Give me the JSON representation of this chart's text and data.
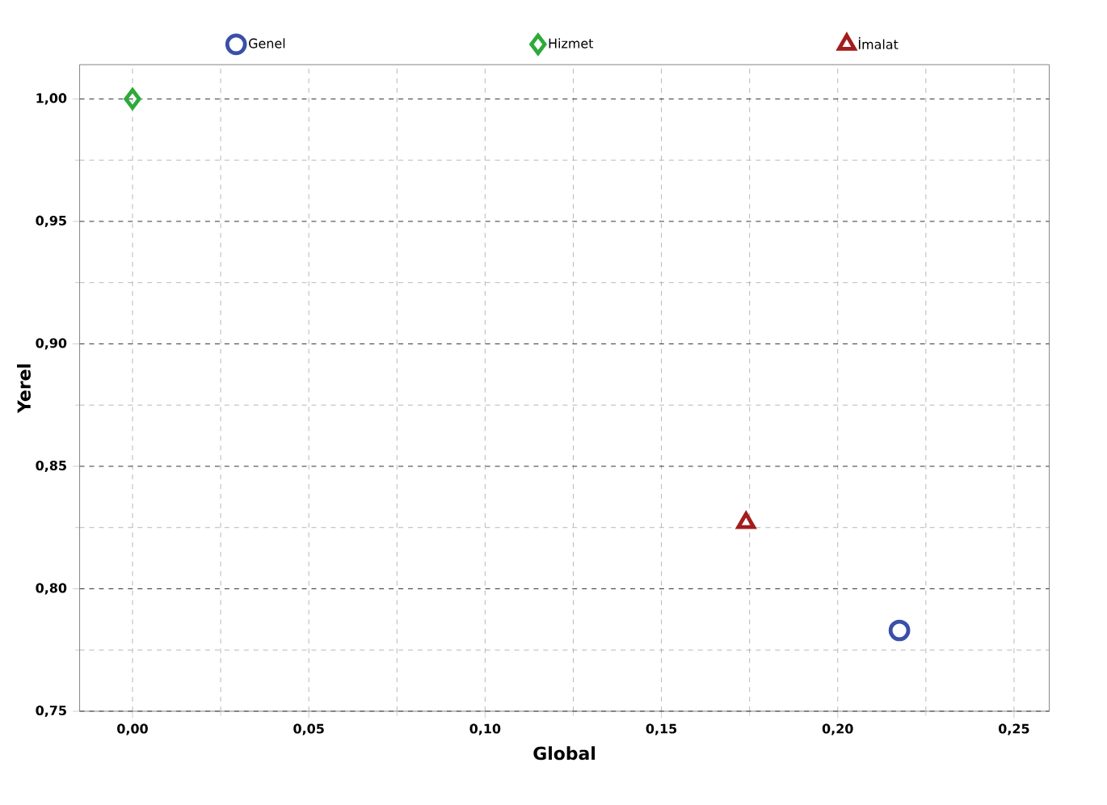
{
  "chart_data": {
    "type": "scatter",
    "xlabel": "Global",
    "ylabel": "Yerel",
    "series": [
      {
        "name": "Genel",
        "color": "#3a4fa8",
        "marker": "circle",
        "x": [
          0.2175
        ],
        "values": [
          0.783
        ]
      },
      {
        "name": "Hizmet",
        "color": "#2eaa3a",
        "marker": "diamond",
        "x": [
          0.0
        ],
        "values": [
          1.0
        ]
      },
      {
        "name": "İmalat",
        "color": "#a31c1c",
        "marker": "triangle",
        "x": [
          0.174
        ],
        "values": [
          0.827
        ]
      }
    ],
    "xlim": [
      -0.015,
      0.26
    ],
    "ylim": [
      0.75,
      1.014
    ],
    "xticks": [
      {
        "value": 0.0,
        "label": "0,00"
      },
      {
        "value": 0.025,
        "label": null
      },
      {
        "value": 0.05,
        "label": "0,05"
      },
      {
        "value": 0.075,
        "label": null
      },
      {
        "value": 0.1,
        "label": "0,10"
      },
      {
        "value": 0.125,
        "label": null
      },
      {
        "value": 0.15,
        "label": "0,15"
      },
      {
        "value": 0.175,
        "label": null
      },
      {
        "value": 0.2,
        "label": "0,20"
      },
      {
        "value": 0.225,
        "label": null
      },
      {
        "value": 0.25,
        "label": "0,25"
      }
    ],
    "yticks": [
      {
        "value": 0.75,
        "label": "0,75"
      },
      {
        "value": 0.775,
        "label": null
      },
      {
        "value": 0.8,
        "label": "0,80"
      },
      {
        "value": 0.825,
        "label": null
      },
      {
        "value": 0.85,
        "label": "0,85"
      },
      {
        "value": 0.875,
        "label": null
      },
      {
        "value": 0.9,
        "label": "0,90"
      },
      {
        "value": 0.925,
        "label": null
      },
      {
        "value": 0.95,
        "label": "0,95"
      },
      {
        "value": 0.975,
        "label": null
      },
      {
        "value": 1.0,
        "label": "1,00"
      }
    ],
    "grid": true,
    "legend": "top"
  }
}
